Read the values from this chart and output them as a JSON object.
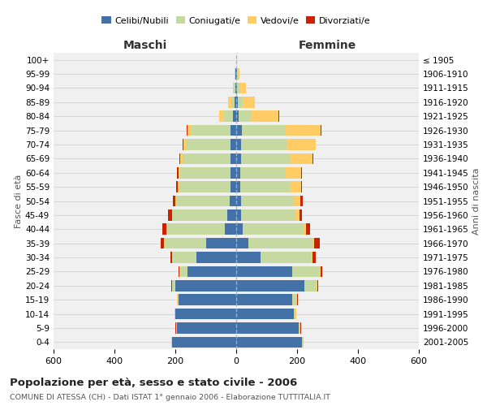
{
  "age_groups": [
    "0-4",
    "5-9",
    "10-14",
    "15-19",
    "20-24",
    "25-29",
    "30-34",
    "35-39",
    "40-44",
    "45-49",
    "50-54",
    "55-59",
    "60-64",
    "65-69",
    "70-74",
    "75-79",
    "80-84",
    "85-89",
    "90-94",
    "95-99",
    "100+"
  ],
  "birth_years": [
    "2001-2005",
    "1996-2000",
    "1991-1995",
    "1986-1990",
    "1981-1985",
    "1976-1980",
    "1971-1975",
    "1966-1970",
    "1961-1965",
    "1956-1960",
    "1951-1955",
    "1946-1950",
    "1941-1945",
    "1936-1940",
    "1931-1935",
    "1926-1930",
    "1921-1925",
    "1916-1920",
    "1911-1915",
    "1906-1910",
    "≤ 1905"
  ],
  "maschi": {
    "celibi": [
      210,
      195,
      200,
      190,
      200,
      160,
      130,
      100,
      38,
      30,
      22,
      18,
      20,
      20,
      20,
      20,
      10,
      5,
      2,
      2,
      0
    ],
    "coniugati": [
      2,
      2,
      2,
      3,
      10,
      25,
      80,
      135,
      190,
      180,
      175,
      170,
      165,
      155,
      145,
      130,
      30,
      12,
      5,
      2,
      0
    ],
    "vedovi": [
      1,
      1,
      1,
      1,
      2,
      2,
      2,
      2,
      2,
      2,
      3,
      3,
      5,
      8,
      8,
      10,
      15,
      10,
      5,
      1,
      0
    ],
    "divorziati": [
      1,
      1,
      1,
      1,
      2,
      3,
      5,
      12,
      14,
      12,
      8,
      6,
      5,
      4,
      2,
      2,
      2,
      0,
      0,
      0,
      0
    ]
  },
  "femmine": {
    "nubili": [
      215,
      205,
      190,
      185,
      225,
      185,
      80,
      40,
      20,
      15,
      15,
      12,
      12,
      15,
      15,
      18,
      8,
      5,
      3,
      2,
      0
    ],
    "coniugate": [
      5,
      5,
      5,
      15,
      40,
      90,
      165,
      210,
      200,
      180,
      175,
      165,
      150,
      160,
      150,
      145,
      40,
      15,
      8,
      3,
      0
    ],
    "vedove": [
      1,
      1,
      1,
      1,
      2,
      3,
      5,
      5,
      8,
      12,
      20,
      35,
      50,
      75,
      95,
      115,
      90,
      40,
      20,
      5,
      0
    ],
    "divorziate": [
      1,
      1,
      1,
      2,
      3,
      5,
      12,
      20,
      15,
      8,
      8,
      5,
      4,
      3,
      2,
      2,
      2,
      0,
      0,
      0,
      0
    ]
  },
  "colors": {
    "celibi": "#4472A8",
    "coniugati": "#C6D9A0",
    "vedovi": "#FFCC66",
    "divorziati": "#CC2200"
  },
  "xlim": 600,
  "title": "Popolazione per età, sesso e stato civile - 2006",
  "subtitle": "COMUNE DI ATESSA (CH) - Dati ISTAT 1° gennaio 2006 - Elaborazione TUTTITALIA.IT",
  "ylabel_left": "Fasce di età",
  "ylabel_right": "Anni di nascita",
  "xlabel_left": "Maschi",
  "xlabel_right": "Femmine"
}
